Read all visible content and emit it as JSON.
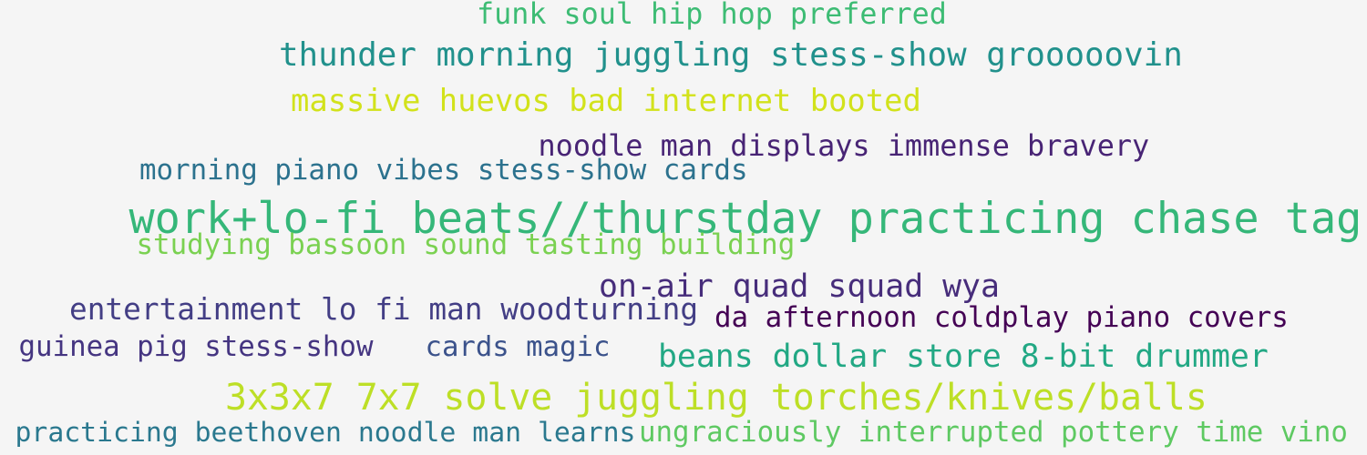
{
  "words": [
    {
      "text": "funk soul hip hop preferred",
      "color": "#3dbc74"
    },
    {
      "text": "thunder morning juggling stess-show grooooovin",
      "color": "#21918c"
    },
    {
      "text": "massive huevos bad internet booted",
      "color": "#d2e21b"
    },
    {
      "text": "noodle man displays immense bravery",
      "color": "#482475"
    },
    {
      "text": "morning piano vibes stess-show  cards",
      "color": "#2c728e"
    },
    {
      "text": "work+lo-fi beats//thurstday practicing chase tag",
      "color": "#35b779"
    },
    {
      "text": "studying bassoon sound tasting building",
      "color": "#7ad151"
    },
    {
      "text": "on-air quad squad wya",
      "color": "#472d7b"
    },
    {
      "text": "entertainment lo fi man woodturning",
      "color": "#433e85"
    },
    {
      "text": "da afternoon coldplay piano covers",
      "color": "#440154"
    },
    {
      "text": "guinea pig stess-show",
      "color": "#453581"
    },
    {
      "text": "cards magic",
      "color": "#3b528b"
    },
    {
      "text": "beans dollar store 8-bit drummer",
      "color": "#22a884"
    },
    {
      "text": "3x3x7 7x7 solve juggling torches/knives/balls",
      "color": "#bddf26"
    },
    {
      "text": "practicing beethoven noodle man learns",
      "color": "#2a788e"
    },
    {
      "text": "ungraciously interrupted pottery time vino",
      "color": "#5ec962"
    }
  ]
}
